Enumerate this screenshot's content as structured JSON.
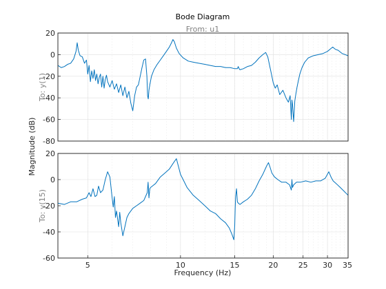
{
  "chart_data": [
    {
      "type": "line",
      "id": "panel-1",
      "title": "Bode Diagram",
      "subtitle": "From: u1",
      "row_label": "To: y(1)",
      "xscale": "log",
      "xlim": [
        4,
        35
      ],
      "ylim": [
        -80,
        20
      ],
      "yticks": [
        20,
        0,
        -20,
        -40,
        -60,
        -80
      ],
      "grid": true,
      "color": "#0072bd",
      "series": [
        {
          "x": [
            4.0,
            4.1,
            4.2,
            4.3,
            4.4,
            4.5,
            4.58,
            4.62,
            4.66,
            4.72,
            4.8,
            4.88,
            4.95,
            5.0,
            5.05,
            5.1,
            5.15,
            5.2,
            5.25,
            5.3,
            5.35,
            5.4,
            5.45,
            5.5,
            5.55,
            5.6,
            5.65,
            5.7,
            5.75,
            5.8,
            5.9,
            6.0,
            6.1,
            6.2,
            6.3,
            6.4,
            6.5,
            6.6,
            6.7,
            6.8,
            6.9,
            7.0,
            7.05,
            7.1,
            7.2,
            7.3,
            7.4,
            7.5,
            7.6,
            7.7,
            7.78,
            7.82,
            7.86,
            7.9,
            7.95,
            8.0,
            8.05,
            8.1,
            8.2,
            8.4,
            8.6,
            8.8,
            9.0,
            9.2,
            9.35,
            9.45,
            9.55,
            9.7,
            9.9,
            10.2,
            10.6,
            11.0,
            11.5,
            12.0,
            12.5,
            13.0,
            13.5,
            14.0,
            14.5,
            15.0,
            15.3,
            15.4,
            15.5,
            15.6,
            16.0,
            16.5,
            17.0,
            17.5,
            18.0,
            18.5,
            18.9,
            19.2,
            19.4,
            19.6,
            19.8,
            20.0,
            20.3,
            20.6,
            21.0,
            21.5,
            22.0,
            22.4,
            22.7,
            22.9,
            23.0,
            23.1,
            23.3,
            23.5,
            23.7,
            23.9,
            24.1,
            24.4,
            24.8,
            25.3,
            26.0,
            27.0,
            28.0,
            29.0,
            30.0,
            30.6,
            31.2,
            31.8,
            32.5,
            33.5,
            35.0
          ],
          "y": [
            -10,
            -12,
            -11,
            -9,
            -8,
            -4,
            3,
            11,
            4,
            -1,
            -2,
            -8,
            -5,
            -18,
            -10,
            -25,
            -15,
            -22,
            -14,
            -24,
            -18,
            -27,
            -21,
            -18,
            -30,
            -20,
            -31,
            -23,
            -19,
            -25,
            -30,
            -24,
            -32,
            -27,
            -35,
            -28,
            -38,
            -30,
            -40,
            -34,
            -45,
            -52,
            -45,
            -38,
            -30,
            -28,
            -20,
            -12,
            -5,
            -4,
            -20,
            -38,
            -41,
            -33,
            -28,
            -24,
            -20,
            -18,
            -14,
            -9,
            -5,
            -1,
            3,
            7,
            11,
            14,
            12,
            6,
            1,
            -3,
            -6,
            -7,
            -8,
            -9,
            -10,
            -11,
            -11,
            -12,
            -12,
            -13,
            -13,
            -11,
            -13,
            -14,
            -13,
            -11,
            -10,
            -7,
            -3,
            0,
            2,
            -2,
            -8,
            -14,
            -20,
            -26,
            -31,
            -28,
            -37,
            -33,
            -40,
            -44,
            -38,
            -60,
            -42,
            -46,
            -62,
            -43,
            -36,
            -30,
            -25,
            -18,
            -12,
            -7,
            -3,
            -1,
            0,
            1,
            3,
            5,
            7,
            5,
            4,
            1,
            -1
          ]
        }
      ]
    },
    {
      "type": "line",
      "id": "panel-2",
      "row_label": "To: y(15)",
      "xscale": "log",
      "xlim": [
        4,
        35
      ],
      "ylim": [
        -60,
        20
      ],
      "yticks": [
        20,
        0,
        -20,
        -40,
        -60
      ],
      "xticks": [
        5,
        10,
        15,
        20,
        25,
        30,
        35
      ],
      "grid": true,
      "color": "#0072bd",
      "series": [
        {
          "x": [
            4.0,
            4.2,
            4.4,
            4.6,
            4.8,
            4.95,
            5.05,
            5.12,
            5.2,
            5.28,
            5.35,
            5.42,
            5.5,
            5.6,
            5.7,
            5.8,
            5.9,
            6.0,
            6.05,
            6.1,
            6.15,
            6.2,
            6.25,
            6.3,
            6.35,
            6.4,
            6.5,
            6.6,
            6.7,
            6.8,
            6.9,
            7.0,
            7.2,
            7.4,
            7.6,
            7.8,
            7.85,
            7.9,
            7.95,
            8.0,
            8.1,
            8.3,
            8.6,
            8.9,
            9.2,
            9.5,
            9.7,
            9.85,
            10.0,
            10.2,
            10.5,
            11.0,
            11.5,
            12.0,
            12.5,
            13.0,
            13.5,
            14.0,
            14.4,
            14.7,
            14.9,
            15.0,
            15.05,
            15.1,
            15.2,
            15.3,
            15.4,
            15.6,
            16.0,
            16.5,
            17.0,
            17.5,
            18.0,
            18.5,
            19.0,
            19.3,
            19.5,
            19.8,
            20.2,
            20.7,
            21.3,
            22.0,
            22.6,
            22.9,
            23.0,
            23.1,
            23.3,
            23.8,
            24.5,
            25.5,
            26.5,
            27.5,
            28.5,
            29.5,
            30.3,
            30.8,
            31.3,
            32.0,
            33.0,
            34.0,
            35.0
          ],
          "y": [
            -18,
            -19,
            -17,
            -17,
            -15,
            -14,
            -10,
            -13,
            -7,
            -13,
            -12,
            -5,
            -10,
            -8,
            0,
            6,
            2,
            -14,
            -21,
            -13,
            -29,
            -24,
            -30,
            -36,
            -25,
            -33,
            -43,
            -36,
            -29,
            -26,
            -24,
            -22,
            -20,
            -18,
            -16,
            -10,
            -2,
            -14,
            -7,
            -6,
            -5,
            -3,
            2,
            5,
            8,
            13,
            16,
            10,
            4,
            0,
            -6,
            -12,
            -16,
            -20,
            -24,
            -26,
            -30,
            -33,
            -37,
            -42,
            -46,
            -35,
            -22,
            -13,
            -7,
            -17,
            -18,
            -19,
            -17,
            -15,
            -12,
            -7,
            -1,
            4,
            10,
            13,
            10,
            5,
            2,
            0,
            -2,
            -2,
            -4,
            -8,
            0,
            -6,
            -4,
            -2,
            -2,
            -1,
            -2,
            -1,
            -1,
            1,
            6,
            2,
            -1,
            -3,
            -6,
            -9,
            -12
          ]
        }
      ]
    }
  ],
  "shared": {
    "ylabel": "Magnitude (dB)",
    "xlabel": "Frequency  (Hz)"
  }
}
